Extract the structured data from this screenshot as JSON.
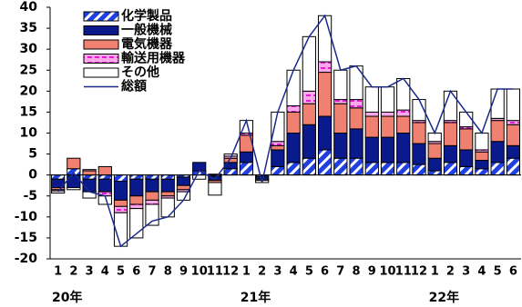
{
  "chart_data": {
    "type": "bar",
    "stacked": true,
    "categories": [
      "1",
      "2",
      "3",
      "4",
      "5",
      "6",
      "7",
      "8",
      "9",
      "10",
      "11",
      "12",
      "1",
      "2",
      "3",
      "4",
      "5",
      "6",
      "7",
      "8",
      "9",
      "10",
      "11",
      "12",
      "1",
      "2",
      "3",
      "4",
      "5",
      "6"
    ],
    "years": [
      "20年",
      "21年",
      "22年"
    ],
    "ylim": [
      -20,
      40
    ],
    "yticks": [
      -20,
      -15,
      -10,
      -5,
      0,
      5,
      10,
      15,
      20,
      25,
      30,
      35,
      40
    ],
    "grid": false,
    "series": [
      {
        "name": "化学製品",
        "color": "#1f3fe0",
        "pattern": "hatched",
        "values": [
          -1,
          1.5,
          -1,
          -1,
          -1.5,
          -1,
          -1,
          -1,
          -0.5,
          1,
          -0.3,
          1.5,
          3,
          -0.3,
          2,
          3,
          4,
          6,
          4,
          4,
          3,
          3,
          3,
          2.5,
          1,
          3,
          2,
          1.5,
          3,
          4
        ]
      },
      {
        "name": "一般機械",
        "color": "#0a1a8c",
        "values": [
          -2,
          -3,
          -3,
          -3,
          -4.5,
          -4,
          -3,
          -3,
          -2,
          2,
          -1,
          1.5,
          2.5,
          -0.7,
          4,
          7,
          8,
          8,
          6,
          7,
          6,
          6,
          7,
          5,
          3,
          4,
          4,
          2,
          5,
          3
        ]
      },
      {
        "name": "電気機器",
        "color": "#f08070",
        "values": [
          -0.5,
          2.5,
          1,
          2,
          -1.5,
          -2,
          -2,
          -1,
          -1,
          0,
          -0.5,
          1,
          4,
          -0.3,
          1,
          5,
          5,
          10.5,
          7,
          5,
          5,
          5,
          4,
          5,
          3.5,
          5.5,
          5,
          2,
          5,
          5
        ]
      },
      {
        "name": "輸送用機器",
        "color": "#f8a8e8",
        "pattern": "dashed",
        "values": [
          -0.3,
          0,
          0.3,
          -1,
          -1.5,
          -1,
          -1,
          -0.5,
          -0.5,
          0,
          0.2,
          0.5,
          0.5,
          0,
          1,
          1.5,
          3,
          2.5,
          1,
          2,
          1,
          1,
          1.5,
          0.5,
          0.5,
          0.5,
          0.5,
          0.5,
          0.5,
          1
        ]
      },
      {
        "name": "その他",
        "color": "#ffffff",
        "values": [
          -0.5,
          -0.5,
          -1.5,
          -2,
          -8,
          -7,
          -5,
          -4.5,
          -2,
          -1,
          -3,
          0.5,
          3,
          -0.5,
          7,
          8.5,
          13,
          11,
          7,
          8,
          6,
          6,
          7.5,
          5,
          2,
          7,
          3.5,
          4,
          7,
          7.5
        ]
      },
      {
        "name": "総額",
        "color": "#1a2a8c",
        "type": "line",
        "values": [
          -4,
          0.5,
          -4,
          -5,
          -17,
          -14,
          -11,
          -10,
          -6,
          1,
          -1,
          4,
          13,
          -1.8,
          15,
          25,
          33,
          38,
          25,
          26,
          21,
          21,
          23,
          18,
          10,
          20,
          15,
          10,
          20.5,
          20.5
        ]
      }
    ]
  }
}
